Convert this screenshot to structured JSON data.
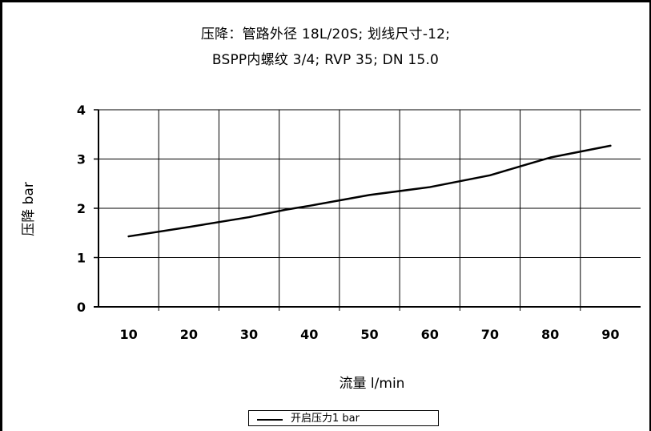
{
  "chart_data": {
    "type": "line",
    "title_line1": "压降：管路外径 18L/20S; 划线尺寸-12;",
    "title_line2": "BSPP内螺纹 3/4; RVP 35; DN 15.0",
    "xlabel": "流量 l/min",
    "ylabel": "压降 bar",
    "x_ticks": [
      "10",
      "20",
      "30",
      "40",
      "50",
      "60",
      "70",
      "80",
      "90"
    ],
    "y_ticks": [
      "0",
      "1",
      "2",
      "3",
      "4"
    ],
    "xlim": [
      5,
      95
    ],
    "ylim": [
      0,
      4
    ],
    "grid": true,
    "legend_position": "bottom",
    "series": [
      {
        "name": "开启压力1 bar",
        "x": [
          10,
          20,
          30,
          36,
          40,
          50,
          60,
          70,
          75,
          80,
          90
        ],
        "y": [
          1.43,
          1.62,
          1.82,
          1.97,
          2.05,
          2.27,
          2.43,
          2.67,
          2.85,
          3.03,
          3.27
        ]
      }
    ]
  }
}
